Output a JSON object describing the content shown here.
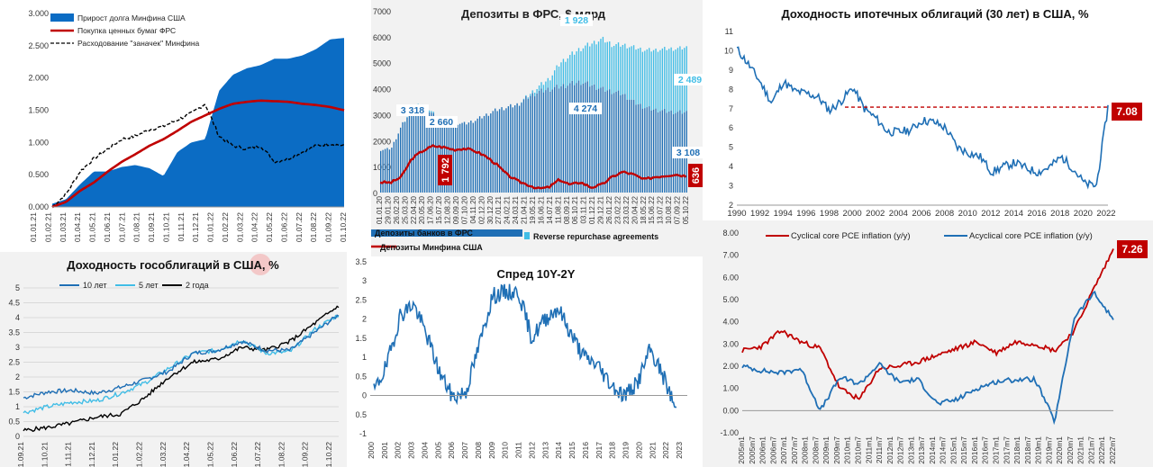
{
  "charts": {
    "c1": {
      "legend": [
        "Прирост долга Минфина США",
        "Покупка ценных бумаг ФРС",
        "Расходование \"заначек\" Минфина"
      ],
      "y_ticks": [
        "0.000",
        "0.500",
        "1.000",
        "1.500",
        "2.000",
        "2.500",
        "3.000"
      ],
      "x_ticks": [
        "01.01.21",
        "01.02.21",
        "01.03.21",
        "01.04.21",
        "01.05.21",
        "01.06.21",
        "01.07.21",
        "01.08.21",
        "01.09.21",
        "01.10.21",
        "01.11.21",
        "01.12.21",
        "01.01.22",
        "01.02.22",
        "01.03.22",
        "01.04.22",
        "01.05.22",
        "01.06.22",
        "01.07.22",
        "01.08.22",
        "01.09.22",
        "01.10.22"
      ]
    },
    "c2": {
      "title": "Депозиты в ФРС, $ млрд",
      "y_ticks": [
        "0",
        "1000",
        "2000",
        "3000",
        "4000",
        "5000",
        "6000",
        "7000"
      ],
      "x_ticks": [
        "01.01.20",
        "29.01.20",
        "26.02.20",
        "25.03.20",
        "22.04.20",
        "20.05.20",
        "17.06.20",
        "15.07.20",
        "12.08.20",
        "09.09.20",
        "07.10.20",
        "04.11.20",
        "02.12.20",
        "30.12.20",
        "27.01.21",
        "24.02.21",
        "24.03.21",
        "21.04.21",
        "19.05.21",
        "16.06.21",
        "14.07.21",
        "11.08.21",
        "08.09.21",
        "06.10.21",
        "03.11.21",
        "01.12.21",
        "29.12.21",
        "26.01.22",
        "23.02.22",
        "23.03.22",
        "20.04.22",
        "18.05.22",
        "15.06.22",
        "13.07.22",
        "10.08.22",
        "07.09.22",
        "05.10.22"
      ],
      "legend": [
        "Депозиты банков в ФРС",
        "Reverse repurchase agreements",
        "Депозиты Минфина США"
      ],
      "labels": [
        "1 928",
        "3 318",
        "2 660",
        "4 274",
        "2 489",
        "3 108",
        "1 792",
        "636"
      ]
    },
    "c3": {
      "title": "Доходность ипотечных облигаций (30 лет) в США, %",
      "y_ticks": [
        "2",
        "3",
        "4",
        "5",
        "6",
        "7",
        "8",
        "9",
        "10",
        "11"
      ],
      "x_ticks": [
        "1990",
        "1992",
        "1994",
        "1996",
        "1998",
        "2000",
        "2002",
        "2004",
        "2006",
        "2008",
        "2010",
        "2012",
        "2014",
        "2016",
        "2018",
        "2020",
        "2022"
      ],
      "end_label": "7.08"
    },
    "c4": {
      "title": "Доходность гособлигаций в США, %",
      "legend": [
        "10 лет",
        "5 лет",
        "2 года"
      ],
      "y_ticks": [
        "0",
        "0.5",
        "1",
        "1.5",
        "2",
        "2.5",
        "3",
        "3.5",
        "4",
        "4.5",
        "5"
      ],
      "x_ticks": [
        "01.09.21",
        "01.10.21",
        "01.11.21",
        "01.12.21",
        "01.01.22",
        "01.02.22",
        "01.03.22",
        "01.04.22",
        "01.05.22",
        "01.06.22",
        "01.07.22",
        "01.08.22",
        "01.09.22",
        "01.10.22"
      ]
    },
    "c5": {
      "title": "Спред 10Y-2Y",
      "y_ticks": [
        "-1",
        "-0.5",
        "0",
        "0.5",
        "1",
        "1.5",
        "2",
        "2.5",
        "3",
        "3.5"
      ],
      "x_ticks": [
        "2000",
        "2001",
        "2002",
        "2003",
        "2004",
        "2005",
        "2006",
        "2007",
        "2008",
        "2009",
        "2010",
        "2011",
        "2012",
        "2013",
        "2014",
        "2015",
        "2016",
        "2017",
        "2018",
        "2019",
        "2020",
        "2021",
        "2022",
        "2023"
      ]
    },
    "c6": {
      "legend": [
        "Cyclical core PCE inflation (y/y)",
        "Acyclical core PCE inflation (y/y)"
      ],
      "y_ticks": [
        "-1.00",
        "0.00",
        "1.00",
        "2.00",
        "3.00",
        "4.00",
        "5.00",
        "6.00",
        "7.00",
        "8.00"
      ],
      "x_ticks": [
        "2005m1",
        "2005m7",
        "2006m1",
        "2006m7",
        "2007m1",
        "2007m7",
        "2008m1",
        "2008m7",
        "2009m1",
        "2009m7",
        "2010m1",
        "2010m7",
        "2011m1",
        "2011m7",
        "2012m1",
        "2012m7",
        "2013m1",
        "2013m7",
        "2014m1",
        "2014m7",
        "2015m1",
        "2015m7",
        "2016m1",
        "2016m7",
        "2017m1",
        "2017m7",
        "2018m1",
        "2018m7",
        "2019m1",
        "2019m7",
        "2020m1",
        "2020m7",
        "2021m1",
        "2021m7",
        "2022m1",
        "2022m7"
      ],
      "end_label": "7.26"
    }
  },
  "chart_data": [
    {
      "type": "area",
      "x": [
        "01.01.21",
        "01.02.21",
        "01.03.21",
        "01.04.21",
        "01.05.21",
        "01.06.21",
        "01.07.21",
        "01.08.21",
        "01.09.21",
        "01.10.21",
        "01.11.21",
        "01.12.21",
        "01.01.22",
        "01.02.22",
        "01.03.22",
        "01.04.22",
        "01.05.22",
        "01.06.22",
        "01.07.22",
        "01.08.22",
        "01.09.22",
        "01.10.22"
      ],
      "series": [
        {
          "name": "Прирост долга Минфина США",
          "kind": "area",
          "color": "#0b6cc4",
          "values": [
            0.05,
            0.12,
            0.35,
            0.55,
            0.55,
            0.62,
            0.65,
            0.6,
            0.48,
            0.85,
            1.0,
            1.05,
            1.8,
            2.05,
            2.15,
            2.2,
            2.3,
            2.3,
            2.35,
            2.45,
            2.6,
            2.62
          ]
        },
        {
          "name": "Покупка ценных бумаг ФРС",
          "kind": "line",
          "color": "#c00000",
          "values": [
            0.0,
            0.08,
            0.25,
            0.38,
            0.55,
            0.7,
            0.82,
            0.95,
            1.05,
            1.18,
            1.32,
            1.42,
            1.52,
            1.6,
            1.63,
            1.65,
            1.64,
            1.63,
            1.6,
            1.58,
            1.55,
            1.5
          ]
        },
        {
          "name": "Расходование \"заначек\" Минфина",
          "kind": "dashed",
          "color": "#000000",
          "values": [
            0.0,
            0.2,
            0.55,
            0.75,
            0.9,
            1.05,
            1.1,
            1.2,
            1.25,
            1.35,
            1.45,
            1.6,
            1.1,
            0.95,
            0.9,
            0.95,
            0.7,
            0.75,
            0.85,
            0.95,
            0.98,
            0.95
          ]
        }
      ],
      "ylim": [
        0,
        3
      ]
    },
    {
      "type": "bar",
      "title": "Депозиты в ФРС, $ млрд",
      "series": [
        {
          "name": "Депозиты банков в ФРС",
          "color": "#1f6fb5",
          "values": [
            1650,
            1700,
            2600,
            3200,
            3318,
            3000,
            2800,
            2700,
            2660,
            2800,
            3000,
            3200,
            3300,
            3400,
            3700,
            3900,
            4000,
            4100,
            4200,
            4274,
            4150,
            4000,
            3900,
            3800,
            3500,
            3300,
            3200,
            3150,
            3100,
            3108
          ]
        },
        {
          "name": "Reverse repurchase agreements",
          "color": "#41bde6",
          "values": [
            0,
            0,
            0,
            50,
            100,
            50,
            0,
            0,
            0,
            0,
            0,
            0,
            0,
            0,
            50,
            200,
            400,
            900,
            1100,
            1300,
            1600,
            1928,
            1800,
            1900,
            2100,
            2200,
            2300,
            2400,
            2450,
            2489
          ]
        },
        {
          "name": "Депозиты Минфина США",
          "color": "#c00000",
          "values": [
            400,
            380,
            600,
            1300,
            1600,
            1792,
            1750,
            1650,
            1700,
            1600,
            1400,
            1100,
            700,
            450,
            300,
            150,
            200,
            500,
            300,
            400,
            200,
            300,
            600,
            800,
            700,
            500,
            600,
            650,
            700,
            636
          ]
        }
      ],
      "ylim": [
        0,
        7000
      ]
    },
    {
      "type": "line",
      "title": "Доходность ипотечных облигаций (30 лет) в США, %",
      "x": [
        1990,
        1991,
        1992,
        1993,
        1994,
        1995,
        1996,
        1997,
        1998,
        1999,
        2000,
        2001,
        2002,
        2003,
        2004,
        2005,
        2006,
        2007,
        2008,
        2009,
        2010,
        2011,
        2012,
        2013,
        2014,
        2015,
        2016,
        2017,
        2018,
        2019,
        2020,
        2021,
        2022
      ],
      "series": [
        {
          "color": "#1f6fb5",
          "values": [
            10.1,
            9.3,
            8.4,
            7.3,
            8.4,
            7.9,
            7.8,
            7.6,
            6.9,
            7.4,
            8.1,
            7.0,
            6.5,
            5.8,
            5.8,
            5.9,
            6.4,
            6.3,
            6.0,
            5.0,
            4.7,
            4.5,
            3.7,
            4.0,
            4.2,
            3.9,
            3.7,
            4.0,
            4.5,
            3.9,
            3.1,
            3.0,
            7.08
          ]
        }
      ],
      "ylim": [
        2,
        11
      ],
      "reference_line": 7.08
    },
    {
      "type": "line",
      "title": "Доходность гособлигаций в США, %",
      "x": [
        "01.09.21",
        "01.10.21",
        "01.11.21",
        "01.12.21",
        "01.01.22",
        "01.02.22",
        "01.03.22",
        "01.04.22",
        "01.05.22",
        "01.06.22",
        "01.07.22",
        "01.08.22",
        "01.09.22",
        "01.10.22"
      ],
      "series": [
        {
          "name": "10 лет",
          "color": "#1f6fb5",
          "values": [
            1.3,
            1.5,
            1.55,
            1.45,
            1.65,
            1.9,
            2.2,
            2.8,
            2.9,
            3.2,
            2.9,
            2.9,
            3.5,
            4.1
          ]
        },
        {
          "name": "5 лет",
          "color": "#41bde6",
          "values": [
            0.8,
            1.0,
            1.15,
            1.2,
            1.45,
            1.8,
            2.3,
            2.8,
            2.9,
            3.25,
            2.8,
            2.85,
            3.6,
            4.1
          ]
        },
        {
          "name": "2 года",
          "color": "#000000",
          "values": [
            0.2,
            0.3,
            0.45,
            0.65,
            0.75,
            1.3,
            2.0,
            2.5,
            2.6,
            3.0,
            2.9,
            3.2,
            3.8,
            4.4
          ]
        }
      ],
      "ylim": [
        0,
        5
      ]
    },
    {
      "type": "line",
      "title": "Спред 10Y-2Y",
      "x": [
        2000,
        2001,
        2002,
        2003,
        2004,
        2005,
        2006,
        2007,
        2008,
        2009,
        2010,
        2011,
        2012,
        2013,
        2014,
        2015,
        2016,
        2017,
        2018,
        2019,
        2020,
        2021,
        2022,
        2023
      ],
      "series": [
        {
          "color": "#1f6fb5",
          "values": [
            0.1,
            0.8,
            2.1,
            2.4,
            1.6,
            0.6,
            -0.05,
            0.1,
            1.3,
            2.6,
            2.7,
            2.7,
            1.5,
            2.0,
            2.3,
            1.6,
            1.0,
            0.8,
            0.3,
            0.0,
            0.3,
            1.2,
            0.5,
            -0.4
          ]
        }
      ],
      "ylim": [
        -1,
        3.5
      ]
    },
    {
      "type": "line",
      "x": [
        "2005m1",
        "2006m1",
        "2007m1",
        "2008m1",
        "2009m1",
        "2010m1",
        "2011m1",
        "2012m1",
        "2013m1",
        "2014m1",
        "2015m1",
        "2016m1",
        "2017m1",
        "2018m1",
        "2019m1",
        "2020m1",
        "2021m1",
        "2021m7",
        "2022m1",
        "2022m7"
      ],
      "series": [
        {
          "name": "Cyclical core PCE inflation (y/y)",
          "color": "#c00000",
          "values": [
            2.7,
            2.9,
            3.6,
            3.1,
            2.8,
            1.0,
            0.5,
            1.9,
            2.0,
            2.2,
            2.5,
            2.8,
            3.1,
            2.6,
            3.1,
            3.0,
            2.7,
            3.6,
            5.5,
            7.26
          ]
        },
        {
          "name": "Acyclical core PCE inflation (y/y)",
          "color": "#1f6fb5",
          "values": [
            2.0,
            1.8,
            1.7,
            1.9,
            0.0,
            1.5,
            1.2,
            2.1,
            1.3,
            1.4,
            0.3,
            0.5,
            1.0,
            1.3,
            1.4,
            1.4,
            -0.5,
            4.2,
            5.3,
            4.1
          ]
        }
      ],
      "ylim": [
        -1,
        8
      ]
    }
  ]
}
